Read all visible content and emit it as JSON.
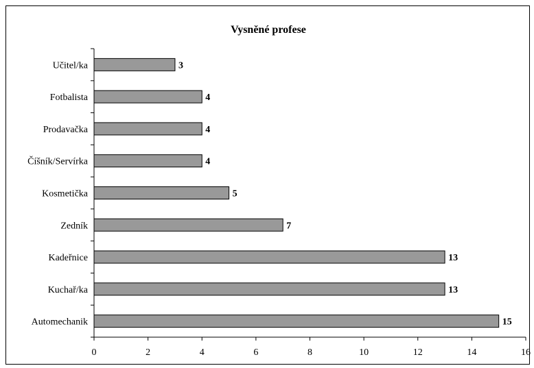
{
  "chart_data": {
    "type": "bar",
    "orientation": "horizontal",
    "title": "Vysněné profese",
    "categories": [
      "Učitel/ka",
      "Fotbalista",
      "Prodavačka",
      "Číšník/Servírka",
      "Kosmetička",
      "Zedník",
      "Kadeřnice",
      "Kuchař/ka",
      "Automechanik"
    ],
    "values": [
      3,
      4,
      4,
      4,
      5,
      7,
      13,
      13,
      15
    ],
    "xlim": [
      0,
      16
    ],
    "xticks": [
      0,
      2,
      4,
      6,
      8,
      10,
      12,
      14,
      16
    ],
    "xlabel": "",
    "ylabel": "",
    "grid": false,
    "legend": "none",
    "data_labels": true,
    "bar_color": "#999999"
  }
}
